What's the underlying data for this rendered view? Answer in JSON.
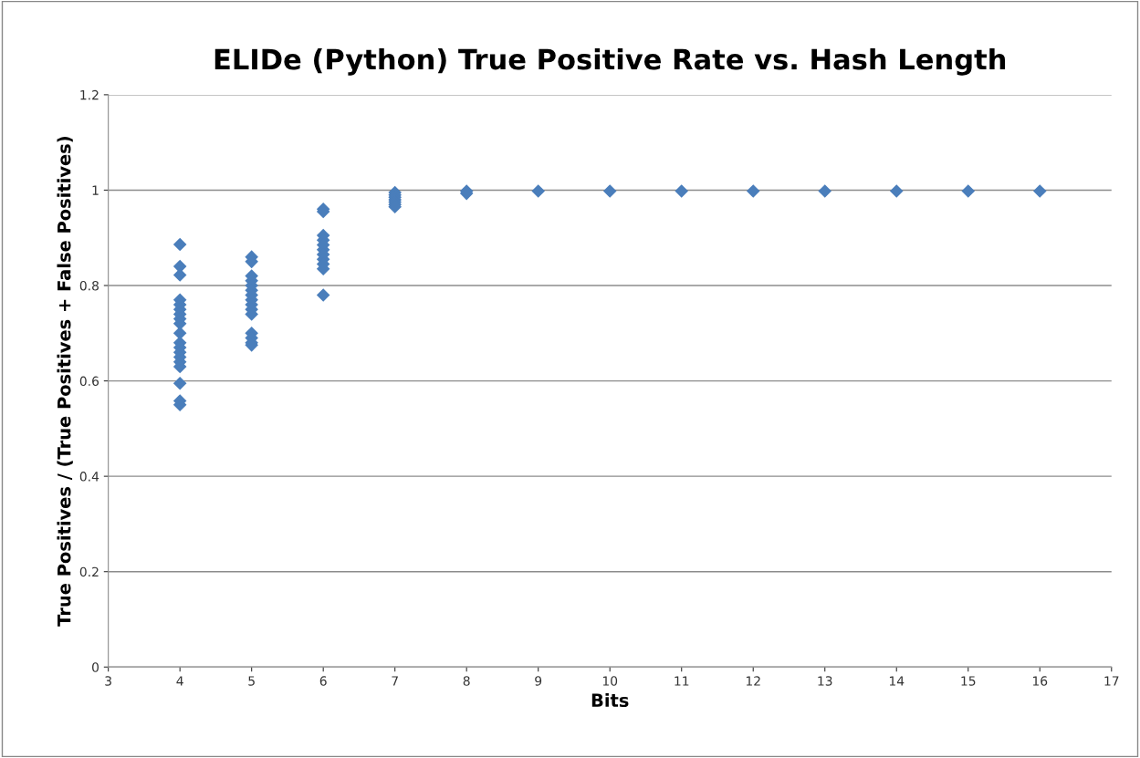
{
  "chart_data": {
    "type": "scatter",
    "title": "ELIDe (Python) True Positive Rate vs. Hash Length",
    "xlabel": "Bits",
    "ylabel": "True Positives / (True Positives + False Positives)",
    "xlim": [
      3,
      17
    ],
    "xticks": [
      3,
      4,
      5,
      6,
      7,
      8,
      9,
      10,
      11,
      12,
      13,
      14,
      15,
      16,
      17
    ],
    "ylim": [
      0,
      1.2
    ],
    "yticks": [
      0,
      0.2,
      0.4,
      0.6,
      0.8,
      1,
      1.2
    ],
    "grid": "y",
    "marker": "diamond",
    "legend": false,
    "series": [
      {
        "color": "#4a7ebb",
        "x": [
          4,
          4,
          4,
          4,
          4,
          4,
          4,
          4,
          4,
          4,
          4,
          4,
          4,
          4,
          4,
          4,
          4,
          4,
          4,
          5,
          5,
          5,
          5,
          5,
          5,
          5,
          5,
          5,
          5,
          5,
          5,
          5,
          5,
          5,
          6,
          6,
          6,
          6,
          6,
          6,
          6,
          6,
          6,
          6,
          6,
          7,
          7,
          7,
          7,
          7,
          7,
          7,
          8,
          8,
          9,
          10,
          11,
          12,
          13,
          14,
          15,
          16
        ],
        "values": [
          0.886,
          0.84,
          0.822,
          0.77,
          0.76,
          0.75,
          0.74,
          0.73,
          0.72,
          0.7,
          0.68,
          0.67,
          0.66,
          0.65,
          0.64,
          0.63,
          0.595,
          0.558,
          0.55,
          0.86,
          0.85,
          0.82,
          0.81,
          0.8,
          0.79,
          0.78,
          0.77,
          0.76,
          0.75,
          0.74,
          0.7,
          0.69,
          0.68,
          0.675,
          0.96,
          0.955,
          0.905,
          0.895,
          0.885,
          0.875,
          0.865,
          0.855,
          0.845,
          0.835,
          0.78,
          0.995,
          0.99,
          0.985,
          0.98,
          0.975,
          0.97,
          0.965,
          0.998,
          0.993,
          0.998,
          0.998,
          0.998,
          0.998,
          0.998,
          0.998,
          0.998,
          0.998
        ]
      }
    ]
  }
}
